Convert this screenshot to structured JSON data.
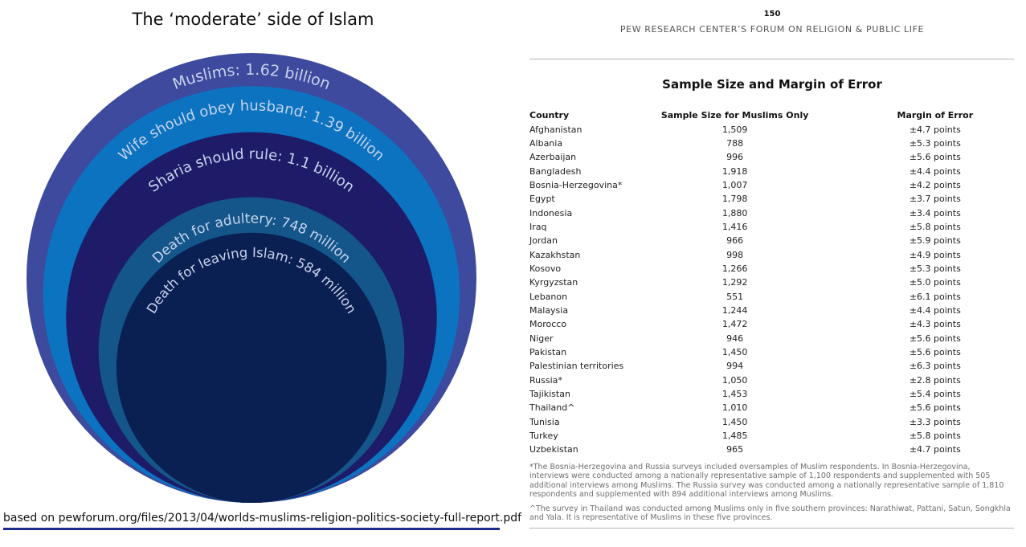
{
  "left": {
    "title": "The ‘moderate’ side of Islam",
    "source": "based on pewforum.org/files/2013/04/worlds-muslims-religion-politics-society-full-report.pdf"
  },
  "chart_data": {
    "type": "nested-circles",
    "title": "The ‘moderate’ side of Islam",
    "unit": "people",
    "series": [
      {
        "label": "Muslims: 1.62 billion",
        "value": 1620000000,
        "color": "#3d4a9e"
      },
      {
        "label": "Wife should obey husband: 1.39 billion",
        "value": 1390000000,
        "color": "#0b73c0"
      },
      {
        "label": "Sharia should rule: 1.1 billion",
        "value": 1100000000,
        "color": "#1e1b68"
      },
      {
        "label": "Death for adultery: 748 million",
        "value": 748000000,
        "color": "#14568a"
      },
      {
        "label": "Death for leaving Islam: 584 million",
        "value": 584000000,
        "color": "#0b2052"
      }
    ],
    "label_color": "#c7d3ec"
  },
  "right": {
    "page_number": "150",
    "report_header": "PEW RESEARCH CENTER’S FORUM ON RELIGION & PUBLIC LIFE",
    "table_title": "Sample Size and Margin of Error",
    "columns": [
      "Country",
      "Sample Size for Muslims Only",
      "Margin of Error"
    ],
    "rows": [
      [
        "Afghanistan",
        "1,509",
        "±4.7 points"
      ],
      [
        "Albania",
        "788",
        "±5.3 points"
      ],
      [
        "Azerbaijan",
        "996",
        "±5.6 points"
      ],
      [
        "Bangladesh",
        "1,918",
        "±4.4 points"
      ],
      [
        "Bosnia-Herzegovina*",
        "1,007",
        "±4.2 points"
      ],
      [
        "Egypt",
        "1,798",
        "±3.7 points"
      ],
      [
        "Indonesia",
        "1,880",
        "±3.4 points"
      ],
      [
        "Iraq",
        "1,416",
        "±5.8 points"
      ],
      [
        "Jordan",
        "966",
        "±5.9 points"
      ],
      [
        "Kazakhstan",
        "998",
        "±4.9 points"
      ],
      [
        "Kosovo",
        "1,266",
        "±5.3 points"
      ],
      [
        "Kyrgyzstan",
        "1,292",
        "±5.0 points"
      ],
      [
        "Lebanon",
        "551",
        "±6.1 points"
      ],
      [
        "Malaysia",
        "1,244",
        "±4.4 points"
      ],
      [
        "Morocco",
        "1,472",
        "±4.3 points"
      ],
      [
        "Niger",
        "946",
        "±5.6 points"
      ],
      [
        "Pakistan",
        "1,450",
        "±5.6 points"
      ],
      [
        "Palestinian territories",
        "994",
        "±6.3 points"
      ],
      [
        "Russia*",
        "1,050",
        "±2.8 points"
      ],
      [
        "Tajikistan",
        "1,453",
        "±5.4 points"
      ],
      [
        "Thailand^",
        "1,010",
        "±5.6 points"
      ],
      [
        "Tunisia",
        "1,450",
        "±3.3 points"
      ],
      [
        "Turkey",
        "1,485",
        "±5.8 points"
      ],
      [
        "Uzbekistan",
        "965",
        "±4.7 points"
      ]
    ],
    "footnote_1": "*The Bosnia-Herzegovina and Russia surveys included oversamples of Muslim respondents. In Bosnia-Herzegovina, interviews were conducted among a nationally representative sample of 1,100 respondents and supplemented with 505 additional interviews among Muslims. The Russia survey was conducted among a nationally representative sample of 1,810 respondents and supplemented with 894 additional interviews among Muslims.",
    "footnote_2": "^The survey in Thailand was conducted among Muslims only in five southern provinces: Narathiwat, Pattani, Satun, Songkhla and Yala. It is representative of Muslims in these five provinces."
  }
}
